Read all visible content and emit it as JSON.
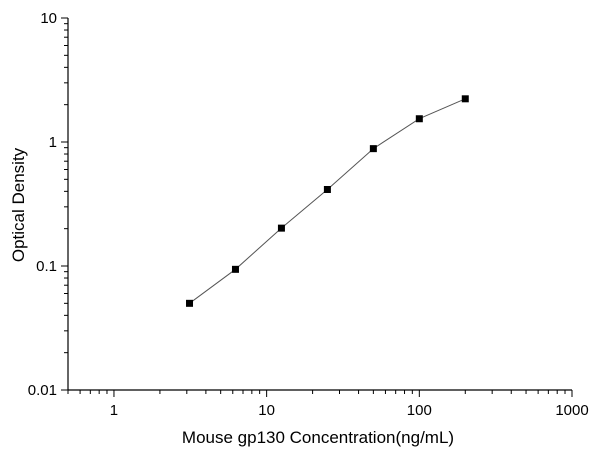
{
  "chart_data": {
    "type": "line",
    "title": "",
    "xlabel": "Mouse gp130 Concentration(ng/mL)",
    "ylabel": "Optical  Density",
    "x_scale": "log",
    "y_scale": "log",
    "xlim": [
      0.5,
      1000
    ],
    "ylim": [
      0.01,
      10
    ],
    "x_ticks": [
      {
        "value": 1,
        "label": "1"
      },
      {
        "value": 10,
        "label": "10"
      },
      {
        "value": 100,
        "label": "100"
      },
      {
        "value": 1000,
        "label": "1000"
      }
    ],
    "y_ticks": [
      {
        "value": 0.01,
        "label": "0.01"
      },
      {
        "value": 0.1,
        "label": "0.1"
      },
      {
        "value": 1,
        "label": "1"
      },
      {
        "value": 10,
        "label": "10"
      }
    ],
    "grid": false,
    "legend": "none",
    "marker": "square",
    "series": [
      {
        "x": [
          3.125,
          6.25,
          12.5,
          25,
          50,
          100,
          200
        ],
        "y": [
          0.05,
          0.094,
          0.202,
          0.414,
          0.884,
          1.54,
          2.23
        ]
      }
    ],
    "colors": {
      "axis": "#000000",
      "line": "#555555",
      "marker": "#000000"
    }
  }
}
